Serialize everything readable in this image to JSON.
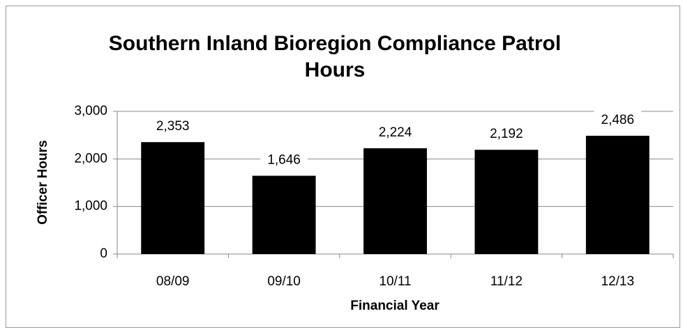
{
  "chart_data": {
    "type": "bar",
    "title": "Southern Inland Bioregion Compliance Patrol Hours",
    "x_label": "Financial Year",
    "y_label": "Officer Hours",
    "categories": [
      "08/09",
      "09/10",
      "10/11",
      "11/12",
      "12/13"
    ],
    "values": [
      2353,
      1646,
      2224,
      2192,
      2486
    ],
    "value_labels": [
      "2,353",
      "1,646",
      "2,224",
      "2,192",
      "2,486"
    ],
    "color": "#000000",
    "ylim": [
      0,
      3000
    ],
    "yticks": [
      0,
      {
        "value": 1000,
        "label": "1,000"
      },
      {
        "value": 2000,
        "label": "2,000"
      },
      {
        "value": 3000,
        "label": "3,000"
      }
    ],
    "grid": true
  }
}
